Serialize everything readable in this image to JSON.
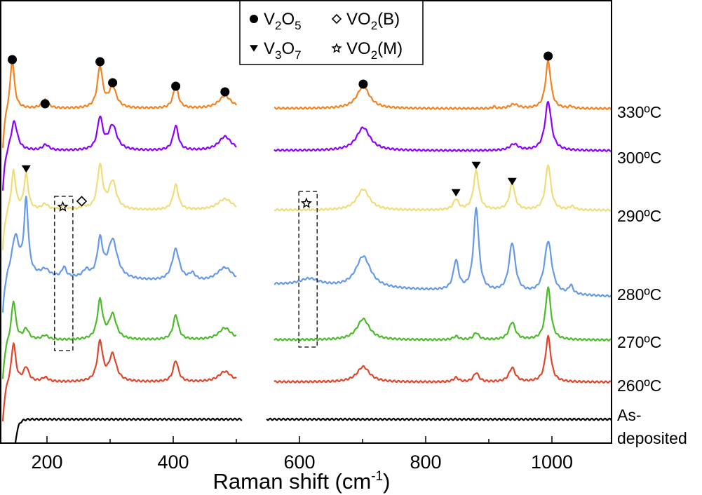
{
  "chart_data": {
    "type": "line",
    "xlabel": "Raman shift (cm",
    "xlabel_sup": "-1",
    "xlabel_end": ")",
    "ylabel": "",
    "xlim": [
      125.6,
      1094
    ],
    "ylim": [
      0,
      632
    ],
    "xticks": [
      200,
      400,
      600,
      800,
      1000
    ],
    "xtick_labels": [
      "200",
      "400",
      "600",
      "800",
      "1000"
    ],
    "minor_xticks": [
      300,
      500,
      700,
      900
    ],
    "grid": false,
    "legend": {
      "placement": "top-center",
      "entries": [
        {
          "marker": "circle",
          "base": "V",
          "sub1": "2",
          "mid": "O",
          "sub2": "5",
          "tail": ""
        },
        {
          "marker": "diamond",
          "base": "VO",
          "sub1": "2",
          "mid": "",
          "sub2": "",
          "tail": "(B)"
        },
        {
          "marker": "triangle-down",
          "base": "V",
          "sub1": "3",
          "mid": "O",
          "sub2": "7",
          "tail": ""
        },
        {
          "marker": "star",
          "base": "VO",
          "sub1": "2",
          "mid": "",
          "sub2": "",
          "tail": "(M)"
        }
      ]
    },
    "segments": [
      [
        130,
        500
      ],
      [
        560,
        1095
      ]
    ],
    "series": [
      {
        "name": "330ºC",
        "color": "#f5821f",
        "offset": 477,
        "slope": 0,
        "peaks": [
          [
            145,
            70,
            4
          ],
          [
            197,
            12,
            6
          ],
          [
            284,
            58,
            5
          ],
          [
            304,
            30,
            7
          ],
          [
            404,
            32,
            5
          ],
          [
            482,
            18,
            12
          ],
          [
            701,
            32,
            12
          ],
          [
            940,
            6,
            8
          ],
          [
            994,
            68,
            5
          ],
          [
            908,
            3,
            2
          ],
          [
            1030,
            3,
            3
          ]
        ]
      },
      {
        "name": "300ºC",
        "color": "#8b00ff",
        "offset": 417,
        "slope": 0,
        "peaks": [
          [
            148,
            42,
            6
          ],
          [
            198,
            8,
            6
          ],
          [
            284,
            45,
            5
          ],
          [
            304,
            35,
            8
          ],
          [
            404,
            35,
            5
          ],
          [
            482,
            20,
            12
          ],
          [
            701,
            33,
            13
          ],
          [
            940,
            9,
            8
          ],
          [
            994,
            70,
            6
          ]
        ]
      },
      {
        "name": "290ºC",
        "color": "#f0dc78",
        "offset": 332,
        "slope": 0,
        "peaks": [
          [
            147,
            56,
            4
          ],
          [
            167,
            50,
            4
          ],
          [
            197,
            8,
            6
          ],
          [
            227,
            5,
            5
          ],
          [
            258,
            4,
            5
          ],
          [
            284,
            62,
            5
          ],
          [
            304,
            40,
            7
          ],
          [
            404,
            36,
            5
          ],
          [
            482,
            16,
            14
          ],
          [
            701,
            30,
            12
          ],
          [
            848,
            15,
            5
          ],
          [
            880,
            56,
            5
          ],
          [
            937,
            38,
            5
          ],
          [
            994,
            65,
            5
          ],
          [
            1032,
            5,
            5
          ]
        ]
      },
      {
        "name": "280ºC",
        "color": "#6699e8",
        "offset": 225,
        "slope": -0.03,
        "peaks": [
          [
            150,
            55,
            7
          ],
          [
            167,
            105,
            4
          ],
          [
            197,
            10,
            8
          ],
          [
            227,
            14,
            4
          ],
          [
            262,
            10,
            6
          ],
          [
            284,
            52,
            5
          ],
          [
            304,
            55,
            9
          ],
          [
            404,
            45,
            7
          ],
          [
            430,
            10,
            6
          ],
          [
            482,
            22,
            16
          ],
          [
            616,
            10,
            20
          ],
          [
            701,
            45,
            14
          ],
          [
            848,
            42,
            5
          ],
          [
            880,
            118,
            5
          ],
          [
            937,
            70,
            6
          ],
          [
            994,
            75,
            7
          ],
          [
            1030,
            12,
            4
          ]
        ]
      },
      {
        "name": "270ºC",
        "color": "#4cbb2a",
        "offset": 147,
        "slope": 0,
        "peaks": [
          [
            147,
            56,
            4
          ],
          [
            167,
            15,
            5
          ],
          [
            197,
            6,
            6
          ],
          [
            284,
            55,
            5
          ],
          [
            304,
            35,
            7
          ],
          [
            404,
            35,
            5
          ],
          [
            482,
            17,
            12
          ],
          [
            701,
            30,
            12
          ],
          [
            848,
            5,
            5
          ],
          [
            880,
            10,
            5
          ],
          [
            937,
            25,
            6
          ],
          [
            994,
            75,
            5
          ]
        ]
      },
      {
        "name": "260ºC",
        "color": "#e0452a",
        "offset": 87,
        "slope": 0,
        "peaks": [
          [
            147,
            56,
            4
          ],
          [
            167,
            20,
            5
          ],
          [
            197,
            6,
            6
          ],
          [
            284,
            56,
            5
          ],
          [
            304,
            38,
            7
          ],
          [
            404,
            30,
            5
          ],
          [
            482,
            15,
            12
          ],
          [
            701,
            22,
            12
          ],
          [
            848,
            6,
            5
          ],
          [
            880,
            13,
            5
          ],
          [
            937,
            20,
            6
          ],
          [
            994,
            65,
            5
          ]
        ]
      },
      {
        "name": "As-deposited",
        "label1": "As-",
        "label2": "deposited",
        "color": "#000000",
        "offset": 34,
        "slope": 0,
        "segments": [
          [
            150,
            509
          ],
          [
            548,
            1094
          ]
        ],
        "peaks": []
      }
    ],
    "markers": [
      {
        "type": "circle",
        "x": 145,
        "y": 547
      },
      {
        "type": "circle",
        "x": 197,
        "y": 484
      },
      {
        "type": "circle",
        "x": 284,
        "y": 544
      },
      {
        "type": "circle",
        "x": 304,
        "y": 514
      },
      {
        "type": "circle",
        "x": 404,
        "y": 509
      },
      {
        "type": "circle",
        "x": 482,
        "y": 501
      },
      {
        "type": "circle",
        "x": 701,
        "y": 512
      },
      {
        "type": "circle",
        "x": 994,
        "y": 552
      },
      {
        "type": "triangle-down",
        "x": 167,
        "y": 391
      },
      {
        "type": "triangle-down",
        "x": 848,
        "y": 357
      },
      {
        "type": "triangle-down",
        "x": 880,
        "y": 396
      },
      {
        "type": "triangle-down",
        "x": 937,
        "y": 373
      },
      {
        "type": "diamond",
        "x": 255,
        "y": 345
      },
      {
        "type": "star",
        "x": 225,
        "y": 337
      },
      {
        "type": "star",
        "x": 611,
        "y": 342
      }
    ],
    "highlight_boxes": [
      {
        "x": [
          212,
          241
        ],
        "y": [
          132,
          352
        ]
      },
      {
        "x": [
          599,
          628
        ],
        "y": [
          137,
          359
        ]
      }
    ]
  }
}
